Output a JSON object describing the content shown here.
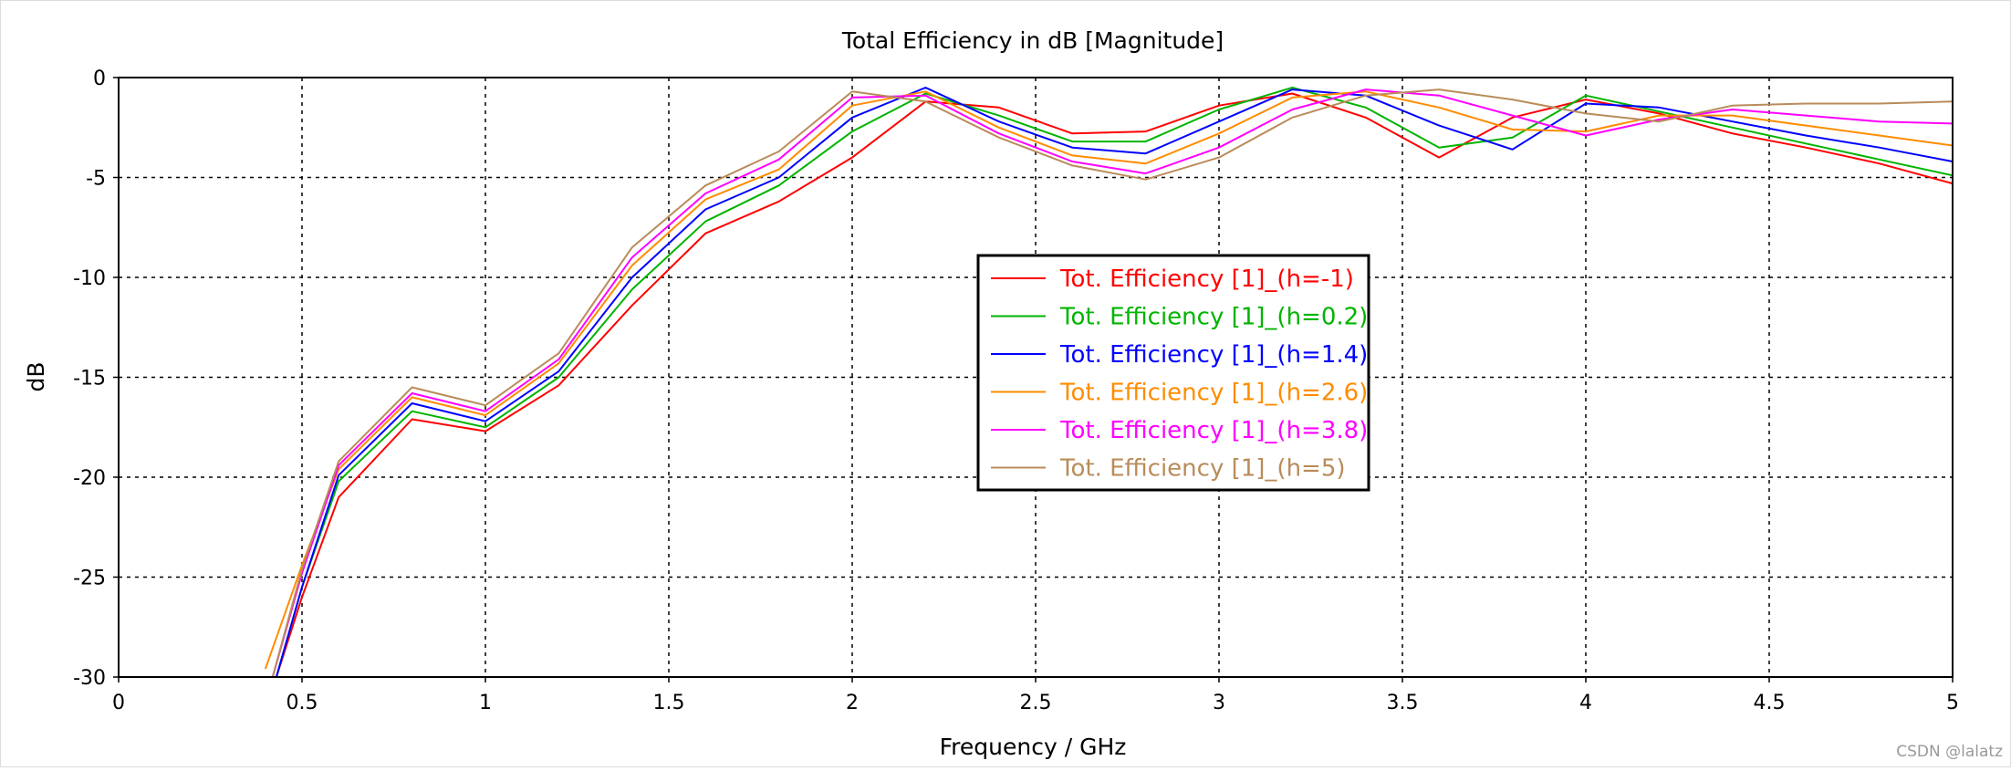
{
  "chart_data": {
    "type": "line",
    "title": "Total Efficiency in dB [Magnitude]",
    "xlabel": "Frequency / GHz",
    "ylabel": "dB",
    "xlim": [
      0,
      5
    ],
    "ylim": [
      -30,
      0
    ],
    "xticks": [
      "0",
      "0.5",
      "1",
      "1.5",
      "2",
      "2.5",
      "3",
      "3.5",
      "4",
      "4.5",
      "5"
    ],
    "yticks": [
      "0",
      "-5",
      "-10",
      "-15",
      "-20",
      "-25",
      "-30"
    ],
    "grid": true,
    "legend_position": "center",
    "series": [
      {
        "name": "Tot. Efficiency [1]_(h=-1)",
        "color": "#ff0000",
        "x": [
          0.43,
          0.5,
          0.6,
          0.8,
          1.0,
          1.2,
          1.4,
          1.6,
          1.8,
          2.0,
          2.2,
          2.4,
          2.6,
          2.8,
          3.0,
          3.2,
          3.4,
          3.6,
          3.8,
          4.0,
          4.2,
          4.4,
          4.6,
          4.8,
          5.0
        ],
        "y": [
          -30.0,
          -26.0,
          -21.0,
          -17.1,
          -17.7,
          -15.4,
          -11.4,
          -7.8,
          -6.2,
          -4.0,
          -1.2,
          -1.5,
          -2.8,
          -2.7,
          -1.4,
          -0.8,
          -2.0,
          -4.0,
          -2.0,
          -1.1,
          -1.8,
          -2.8,
          -3.5,
          -4.3,
          -5.3
        ]
      },
      {
        "name": "Tot. Efficiency [1]_(h=0.2)",
        "color": "#00b400",
        "x": [
          0.43,
          0.5,
          0.6,
          0.8,
          1.0,
          1.2,
          1.4,
          1.6,
          1.8,
          2.0,
          2.2,
          2.4,
          2.6,
          2.8,
          3.0,
          3.2,
          3.4,
          3.6,
          3.8,
          4.0,
          4.2,
          4.4,
          4.6,
          4.8,
          5.0
        ],
        "y": [
          -30.0,
          -25.5,
          -20.2,
          -16.7,
          -17.5,
          -15.0,
          -10.6,
          -7.2,
          -5.4,
          -2.7,
          -0.8,
          -1.9,
          -3.2,
          -3.2,
          -1.6,
          -0.5,
          -1.5,
          -3.5,
          -3.0,
          -0.9,
          -1.7,
          -2.5,
          -3.3,
          -4.1,
          -4.9
        ]
      },
      {
        "name": "Tot. Efficiency [1]_(h=1.4)",
        "color": "#0000ff",
        "x": [
          0.43,
          0.5,
          0.6,
          0.8,
          1.0,
          1.2,
          1.4,
          1.6,
          1.8,
          2.0,
          2.2,
          2.4,
          2.6,
          2.8,
          3.0,
          3.2,
          3.4,
          3.6,
          3.8,
          4.0,
          4.2,
          4.4,
          4.6,
          4.8,
          5.0
        ],
        "y": [
          -30.0,
          -25.5,
          -19.9,
          -16.3,
          -17.2,
          -14.7,
          -10.0,
          -6.6,
          -5.0,
          -2.0,
          -0.5,
          -2.2,
          -3.5,
          -3.8,
          -2.2,
          -0.6,
          -0.9,
          -2.4,
          -3.6,
          -1.3,
          -1.5,
          -2.2,
          -2.9,
          -3.5,
          -4.2
        ]
      },
      {
        "name": "Tot. Efficiency [1]_(h=2.6)",
        "color": "#ff8c00",
        "x": [
          0.4,
          0.5,
          0.6,
          0.8,
          1.0,
          1.2,
          1.4,
          1.6,
          1.8,
          2.0,
          2.2,
          2.4,
          2.6,
          2.8,
          3.0,
          3.2,
          3.4,
          3.6,
          3.8,
          4.0,
          4.2,
          4.4,
          4.6,
          4.8,
          5.0
        ],
        "y": [
          -29.6,
          -24.4,
          -19.6,
          -16.0,
          -16.9,
          -14.3,
          -9.4,
          -6.1,
          -4.6,
          -1.4,
          -0.7,
          -2.5,
          -3.9,
          -4.3,
          -2.8,
          -1.0,
          -0.7,
          -1.5,
          -2.6,
          -2.7,
          -1.9,
          -1.9,
          -2.4,
          -2.9,
          -3.4
        ]
      },
      {
        "name": "Tot. Efficiency [1]_(h=3.8)",
        "color": "#ff00ff",
        "x": [
          0.42,
          0.5,
          0.6,
          0.8,
          1.0,
          1.2,
          1.4,
          1.6,
          1.8,
          2.0,
          2.2,
          2.4,
          2.6,
          2.8,
          3.0,
          3.2,
          3.4,
          3.6,
          3.8,
          4.0,
          4.2,
          4.4,
          4.6,
          4.8,
          5.0
        ],
        "y": [
          -30.0,
          -24.8,
          -19.4,
          -15.8,
          -16.7,
          -14.1,
          -9.0,
          -5.8,
          -4.1,
          -1.0,
          -0.9,
          -2.8,
          -4.2,
          -4.8,
          -3.5,
          -1.6,
          -0.6,
          -0.9,
          -1.9,
          -2.9,
          -2.1,
          -1.6,
          -1.9,
          -2.2,
          -2.3
        ]
      },
      {
        "name": "Tot. Efficiency [1]_(h=5)",
        "color": "#b98c5a",
        "x": [
          0.42,
          0.5,
          0.6,
          0.8,
          1.0,
          1.2,
          1.4,
          1.6,
          1.8,
          2.0,
          2.2,
          2.4,
          2.6,
          2.8,
          3.0,
          3.2,
          3.4,
          3.6,
          3.8,
          4.0,
          4.2,
          4.4,
          4.6,
          4.8,
          5.0
        ],
        "y": [
          -30.0,
          -24.6,
          -19.2,
          -15.5,
          -16.4,
          -13.8,
          -8.5,
          -5.4,
          -3.7,
          -0.7,
          -1.2,
          -3.0,
          -4.4,
          -5.1,
          -4.0,
          -2.0,
          -0.9,
          -0.6,
          -1.1,
          -1.8,
          -2.2,
          -1.4,
          -1.3,
          -1.3,
          -1.2
        ]
      }
    ]
  },
  "watermark": "CSDN @lalatz"
}
